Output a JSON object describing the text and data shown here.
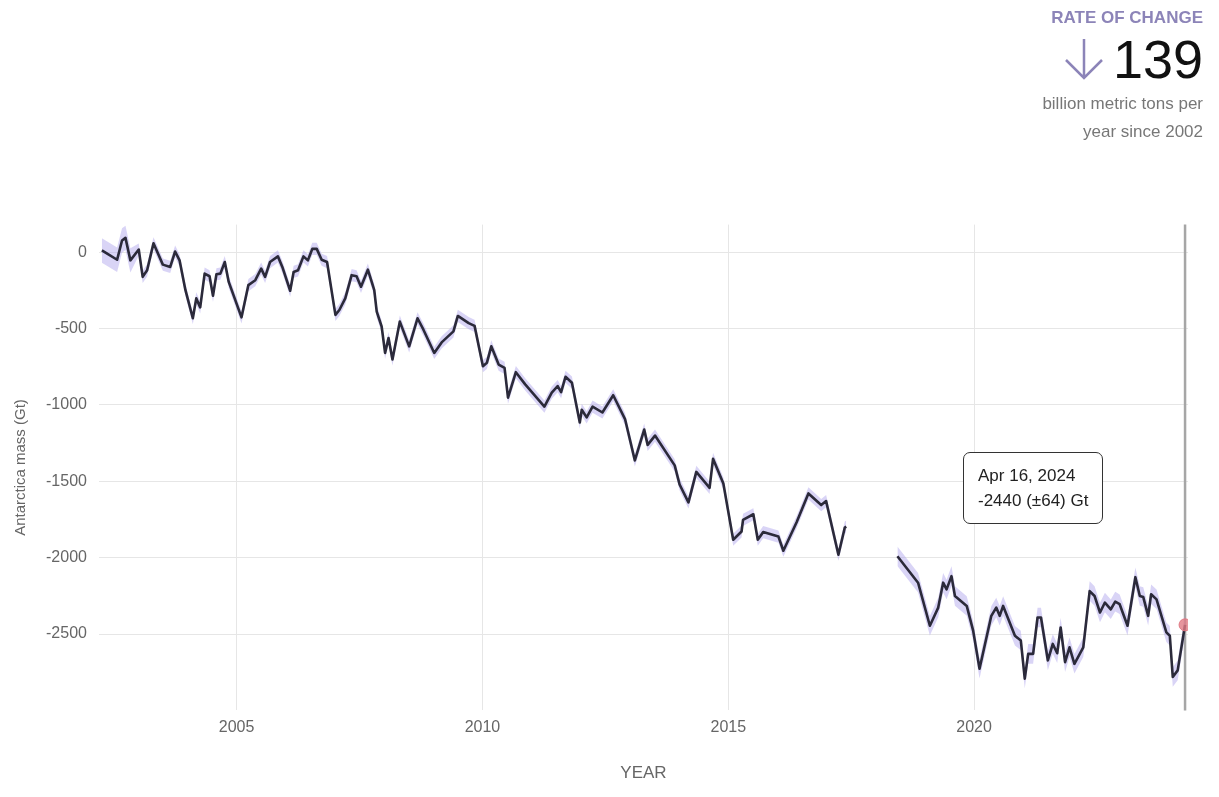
{
  "chart_data": {
    "type": "line",
    "xlabel": "YEAR",
    "ylabel": "Antarctica mass (Gt)",
    "xlim": [
      2002.2,
      2024.35
    ],
    "xticks": [
      2005,
      2010,
      2015,
      2020
    ],
    "ylim": [
      -3000,
      180
    ],
    "yticks": [
      0,
      -500,
      -1000,
      -1500,
      -2000,
      -2500
    ],
    "grid": true,
    "legend": false,
    "annotations": [
      "RATE OF CHANGE",
      "139",
      "billion metric tons per year since 2002",
      "Apr 16, 2024\n-2440 (±64) Gt"
    ],
    "ref_lines": [
      {
        "axis": "x",
        "value": 2024.29,
        "color": "#a6a6a6"
      }
    ],
    "series": [
      {
        "color": "#2b2a3a",
        "x": [
          2002.26,
          2002.57,
          2002.67,
          2002.74,
          2002.84,
          2003.01,
          2003.09,
          2003.18,
          2003.31,
          2003.5,
          2003.65,
          2003.75,
          2003.84,
          2003.96,
          2004.11,
          2004.18,
          2004.26,
          2004.35,
          2004.45,
          2004.52,
          2004.59,
          2004.67,
          2004.76,
          2004.84,
          2005.1,
          2005.24,
          2005.38,
          2005.5,
          2005.58,
          2005.68,
          2005.84,
          2005.93,
          2006.09,
          2006.16,
          2006.25,
          2006.36,
          2006.45,
          2006.54,
          2006.63,
          2006.73,
          2006.84,
          2007.01,
          2007.09,
          2007.21,
          2007.34,
          2007.44,
          2007.53,
          2007.67,
          2007.8,
          2007.85,
          2007.95,
          2008.02,
          2008.09,
          2008.17,
          2008.32,
          2008.51,
          2008.68,
          2008.8,
          2009.02,
          2009.17,
          2009.41,
          2009.5,
          2009.72,
          2009.84,
          2010.01,
          2010.09,
          2010.18,
          2010.33,
          2010.45,
          2010.52,
          2010.68,
          2010.87,
          2011.26,
          2011.41,
          2011.53,
          2011.6,
          2011.69,
          2011.82,
          2011.98,
          2012.02,
          2012.12,
          2012.24,
          2012.44,
          2012.66,
          2012.9,
          2013.1,
          2013.29,
          2013.36,
          2013.51,
          2013.91,
          2014.01,
          2014.19,
          2014.35,
          2014.62,
          2014.69,
          2014.9,
          2015.1,
          2015.27,
          2015.3,
          2015.51,
          2015.6,
          2015.71,
          2016.02,
          2016.12,
          2016.39,
          2016.63,
          2016.89,
          2016.99,
          2017.24,
          2017.37,
          2017.4,
          2017.9,
          2018.44,
          2018.86,
          2019.1,
          2019.27,
          2019.37,
          2019.44,
          2019.54,
          2019.61,
          2019.85,
          2019.98,
          2020.11,
          2020.35,
          2020.45,
          2020.52,
          2020.59,
          2020.83,
          2020.95,
          2021.03,
          2021.1,
          2021.2,
          2021.29,
          2021.36,
          2021.5,
          2021.6,
          2021.69,
          2021.76,
          2021.85,
          2021.94,
          2022.04,
          2022.22,
          2022.35,
          2022.45,
          2022.56,
          2022.66,
          2022.78,
          2022.87,
          2022.96,
          2023.12,
          2023.28,
          2023.37,
          2023.44,
          2023.54,
          2023.6,
          2023.71,
          2023.91,
          2023.98,
          2024.04,
          2024.14,
          2024.29
        ],
        "values": [
          11,
          -50,
          76,
          93,
          -54,
          17,
          -162,
          -119,
          58,
          -82,
          -97,
          4,
          -54,
          -249,
          -433,
          -303,
          -362,
          -141,
          -158,
          -286,
          -145,
          -141,
          -65,
          -195,
          -427,
          -216,
          -184,
          -108,
          -162,
          -65,
          -28,
          -97,
          -253,
          -130,
          -119,
          -28,
          -54,
          21,
          21,
          -50,
          -65,
          -411,
          -379,
          -303,
          -151,
          -158,
          -227,
          -115,
          -249,
          -390,
          -487,
          -660,
          -563,
          -703,
          -455,
          -617,
          -433,
          -508,
          -660,
          -591,
          -519,
          -418,
          -465,
          -483,
          -747,
          -725,
          -617,
          -736,
          -758,
          -953,
          -786,
          -866,
          -1011,
          -920,
          -877,
          -916,
          -816,
          -855,
          -1115,
          -1032,
          -1082,
          -1011,
          -1050,
          -937,
          -1093,
          -1364,
          -1162,
          -1262,
          -1201,
          -1396,
          -1521,
          -1638,
          -1439,
          -1543,
          -1353,
          -1515,
          -1883,
          -1829,
          -1753,
          -1716,
          -1883,
          -1833,
          -1862,
          -1955,
          -1768,
          -1580,
          -1656,
          -1630,
          -1981,
          -1803,
          -1797,
          null,
          -1991,
          -2164,
          -2446,
          -2327,
          -2164,
          -2208,
          -2121,
          -2251,
          -2316,
          -2478,
          -2727,
          -2381,
          -2327,
          -2381,
          -2316,
          -2511,
          -2543,
          -2792,
          -2630,
          -2630,
          -2392,
          -2392,
          -2673,
          -2565,
          -2626,
          -2457,
          -2684,
          -2587,
          -2695,
          -2587,
          -2219,
          -2251,
          -2359,
          -2294,
          -2338,
          -2288,
          -2305,
          -2446,
          -2128,
          -2251,
          -2258,
          -2381,
          -2240,
          -2273,
          -2489,
          -2511,
          -2781,
          -2738,
          -2440
        ],
        "lower": [
          -69,
          -130,
          -4,
          13,
          -134,
          -23,
          -202,
          -159,
          18,
          -122,
          -137,
          -36,
          -94,
          -289,
          -473,
          -343,
          -402,
          -181,
          -198,
          -326,
          -185,
          -181,
          -105,
          -235,
          -467,
          -256,
          -224,
          -148,
          -202,
          -105,
          -68,
          -137,
          -293,
          -170,
          -159,
          -68,
          -94,
          -19,
          -19,
          -90,
          -105,
          -451,
          -419,
          -343,
          -191,
          -198,
          -267,
          -155,
          -289,
          -430,
          -527,
          -700,
          -603,
          -743,
          -495,
          -657,
          -473,
          -548,
          -700,
          -631,
          -559,
          -458,
          -505,
          -523,
          -787,
          -765,
          -657,
          -776,
          -798,
          -993,
          -826,
          -906,
          -1051,
          -960,
          -917,
          -956,
          -856,
          -895,
          -1155,
          -1072,
          -1122,
          -1051,
          -1090,
          -977,
          -1133,
          -1404,
          -1202,
          -1302,
          -1241,
          -1436,
          -1561,
          -1678,
          -1479,
          -1583,
          -1393,
          -1555,
          -1923,
          -1869,
          -1793,
          -1756,
          -1923,
          -1873,
          -1902,
          -1995,
          -1808,
          -1620,
          -1696,
          -1670,
          -2021,
          -1843,
          -1837,
          null,
          -2055,
          -2228,
          -2510,
          -2391,
          -2228,
          -2272,
          -2185,
          -2315,
          -2380,
          -2542,
          -2791,
          -2445,
          -2391,
          -2445,
          -2380,
          -2575,
          -2607,
          -2856,
          -2694,
          -2694,
          -2456,
          -2456,
          -2737,
          -2629,
          -2690,
          -2521,
          -2748,
          -2651,
          -2759,
          -2651,
          -2283,
          -2315,
          -2423,
          -2358,
          -2402,
          -2352,
          -2369,
          -2510,
          -2192,
          -2315,
          -2322,
          -2445,
          -2304,
          -2337,
          -2553,
          -2575,
          -2845,
          -2802,
          -2504
        ],
        "upper": [
          91,
          30,
          156,
          173,
          26,
          57,
          -122,
          -79,
          98,
          -42,
          -57,
          44,
          -14,
          -209,
          -393,
          -263,
          -322,
          -101,
          -118,
          -246,
          -105,
          -101,
          -25,
          -155,
          -387,
          -176,
          -144,
          -68,
          -122,
          -25,
          12,
          -57,
          -213,
          -90,
          -79,
          12,
          -14,
          61,
          61,
          -10,
          -25,
          -371,
          -339,
          -263,
          -111,
          -118,
          -187,
          -75,
          -209,
          -350,
          -447,
          -620,
          -523,
          -663,
          -415,
          -577,
          -393,
          -468,
          -620,
          -551,
          -479,
          -378,
          -425,
          -443,
          -707,
          -685,
          -577,
          -696,
          -718,
          -913,
          -746,
          -826,
          -971,
          -880,
          -837,
          -876,
          -776,
          -815,
          -1075,
          -992,
          -1042,
          -971,
          -1010,
          -897,
          -1053,
          -1324,
          -1122,
          -1222,
          -1161,
          -1356,
          -1481,
          -1598,
          -1399,
          -1503,
          -1313,
          -1475,
          -1843,
          -1789,
          -1713,
          -1676,
          -1843,
          -1793,
          -1822,
          -1915,
          -1728,
          -1540,
          -1616,
          -1590,
          -1941,
          -1763,
          -1757,
          null,
          -1927,
          -2100,
          -2382,
          -2263,
          -2100,
          -2144,
          -2057,
          -2187,
          -2252,
          -2414,
          -2663,
          -2317,
          -2263,
          -2317,
          -2252,
          -2447,
          -2479,
          -2728,
          -2566,
          -2566,
          -2328,
          -2328,
          -2609,
          -2501,
          -2562,
          -2393,
          -2620,
          -2523,
          -2631,
          -2523,
          -2155,
          -2187,
          -2295,
          -2230,
          -2274,
          -2224,
          -2241,
          -2382,
          -2064,
          -2187,
          -2194,
          -2317,
          -2176,
          -2209,
          -2425,
          -2447,
          -2717,
          -2674,
          -2376
        ]
      },
      {
        "type": "scatter",
        "color": "#e07a84",
        "x": [
          2024.29
        ],
        "values": [
          -2440
        ]
      }
    ]
  }
}
